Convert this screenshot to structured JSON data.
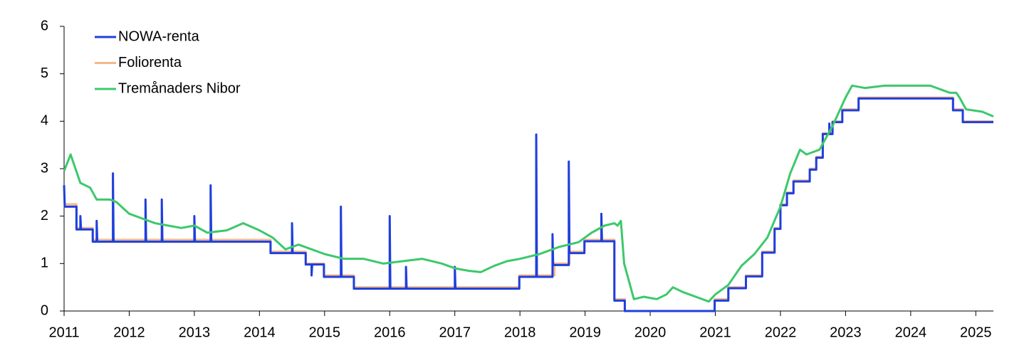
{
  "chart_data": {
    "type": "line",
    "xlim": [
      2011,
      2025.27
    ],
    "ylim": [
      0,
      6
    ],
    "xticks": [
      2011,
      2012,
      2013,
      2014,
      2015,
      2016,
      2017,
      2018,
      2019,
      2020,
      2021,
      2022,
      2023,
      2024,
      2025
    ],
    "yticks": [
      0,
      1,
      2,
      3,
      4,
      5,
      6
    ],
    "legend": "upper-left",
    "series": [
      {
        "name": "NOWA-renta",
        "color": "#1f3fdc",
        "x": [
          2011.0,
          2011.01,
          2011.19,
          2011.19,
          2011.25,
          2011.25,
          2011.26,
          2011.44,
          2011.44,
          2011.5,
          2011.5,
          2011.51,
          2011.75,
          2011.75,
          2011.76,
          2012.25,
          2012.25,
          2012.26,
          2012.5,
          2012.5,
          2012.51,
          2013.0,
          2013.0,
          2013.01,
          2013.25,
          2013.25,
          2013.26,
          2014.17,
          2014.17,
          2014.5,
          2014.5,
          2014.51,
          2014.71,
          2014.71,
          2014.8,
          2014.8,
          2014.81,
          2014.99,
          2014.99,
          2015.25,
          2015.25,
          2015.26,
          2015.45,
          2015.45,
          2016.0,
          2016.0,
          2016.01,
          2016.25,
          2016.25,
          2016.26,
          2017.0,
          2017.0,
          2017.01,
          2017.99,
          2017.99,
          2018.25,
          2018.25,
          2018.26,
          2018.5,
          2018.5,
          2018.51,
          2018.75,
          2018.75,
          2018.76,
          2018.99,
          2018.99,
          2019.25,
          2019.25,
          2019.26,
          2019.45,
          2019.45,
          2019.61,
          2019.61,
          2020.99,
          2020.99,
          2021.2,
          2021.2,
          2021.47,
          2021.47,
          2021.72,
          2021.72,
          2021.91,
          2021.91,
          2022.0,
          2022.0,
          2022.1,
          2022.1,
          2022.2,
          2022.2,
          2022.45,
          2022.45,
          2022.55,
          2022.55,
          2022.65,
          2022.65,
          2022.75,
          2022.75,
          2022.76,
          2022.8,
          2022.8,
          2022.95,
          2022.95,
          2023.2,
          2023.2,
          2024.65,
          2024.65,
          2024.8,
          2024.8,
          2025.27
        ],
        "values": [
          2.65,
          2.2,
          2.2,
          1.72,
          1.72,
          2.0,
          1.72,
          1.72,
          1.46,
          1.46,
          1.9,
          1.46,
          1.46,
          2.9,
          1.46,
          1.46,
          2.35,
          1.46,
          1.46,
          2.35,
          1.46,
          1.46,
          2.0,
          1.46,
          1.46,
          2.65,
          1.46,
          1.46,
          1.22,
          1.22,
          1.85,
          1.22,
          1.22,
          0.98,
          0.98,
          0.75,
          0.98,
          0.98,
          0.72,
          0.72,
          2.2,
          0.72,
          0.72,
          0.47,
          0.47,
          2.0,
          0.47,
          0.47,
          0.93,
          0.47,
          0.47,
          0.93,
          0.47,
          0.47,
          0.72,
          0.72,
          3.72,
          0.72,
          0.72,
          1.62,
          0.97,
          0.97,
          3.15,
          1.22,
          1.22,
          1.47,
          1.47,
          2.05,
          1.47,
          1.47,
          0.22,
          0.22,
          0.0,
          0.0,
          0.22,
          0.22,
          0.48,
          0.48,
          0.73,
          0.73,
          1.23,
          1.23,
          1.73,
          1.73,
          2.23,
          2.23,
          2.48,
          2.48,
          2.73,
          2.73,
          2.98,
          2.98,
          3.23,
          3.23,
          3.73,
          3.73,
          3.95,
          3.73,
          3.73,
          3.98,
          3.98,
          4.23,
          4.23,
          4.48,
          4.48,
          4.23,
          4.23,
          3.98,
          3.98
        ]
      },
      {
        "name": "Foliorenta",
        "color": "#f5b88a",
        "x": [
          2011.0,
          2011.19,
          2011.19,
          2011.44,
          2011.44,
          2014.17,
          2014.17,
          2014.71,
          2014.71,
          2014.99,
          2014.99,
          2015.45,
          2015.45,
          2017.99,
          2017.99,
          2018.53,
          2018.53,
          2018.76,
          2018.76,
          2018.99,
          2018.99,
          2019.45,
          2019.45,
          2019.61,
          2019.61,
          2020.99,
          2020.99,
          2021.2,
          2021.2,
          2021.47,
          2021.47,
          2021.72,
          2021.72,
          2021.91,
          2021.91,
          2022.0,
          2022.0,
          2022.1,
          2022.1,
          2022.2,
          2022.2,
          2022.45,
          2022.45,
          2022.55,
          2022.55,
          2022.65,
          2022.65,
          2022.8,
          2022.8,
          2022.95,
          2022.95,
          2023.2,
          2023.2,
          2024.65,
          2024.65,
          2024.8,
          2024.8,
          2025.27
        ],
        "values": [
          2.25,
          2.25,
          1.75,
          1.75,
          1.5,
          1.5,
          1.25,
          1.25,
          1.0,
          1.0,
          0.75,
          0.75,
          0.5,
          0.5,
          0.75,
          0.75,
          1.0,
          1.0,
          1.25,
          1.25,
          1.5,
          1.5,
          0.25,
          0.25,
          0,
          0,
          0.25,
          0.25,
          0.5,
          0.5,
          0.75,
          0.75,
          1.25,
          1.25,
          1.75,
          1.75,
          2.25,
          2.25,
          2.5,
          2.5,
          2.75,
          2.75,
          3.0,
          3.0,
          3.25,
          3.25,
          3.75,
          3.75,
          4.0,
          4.0,
          4.25,
          4.25,
          4.5,
          4.5,
          4.25,
          4.25,
          4.0,
          4.0
        ]
      },
      {
        "name": "Tremånaders Nibor",
        "color": "#3cc86b",
        "x": [
          2011.0,
          2011.1,
          2011.15,
          2011.25,
          2011.4,
          2011.5,
          2011.7,
          2011.8,
          2012.0,
          2012.2,
          2012.4,
          2012.6,
          2012.8,
          2013.0,
          2013.2,
          2013.5,
          2013.75,
          2014.0,
          2014.2,
          2014.4,
          2014.6,
          2014.8,
          2015.0,
          2015.3,
          2015.6,
          2015.9,
          2016.2,
          2016.5,
          2016.8,
          2017.0,
          2017.2,
          2017.4,
          2017.6,
          2017.8,
          2018.0,
          2018.3,
          2018.6,
          2018.9,
          2019.1,
          2019.3,
          2019.45,
          2019.5,
          2019.55,
          2019.6,
          2019.7,
          2019.75,
          2019.9,
          2020.1,
          2020.25,
          2020.35,
          2020.5,
          2020.7,
          2020.9,
          2021.0,
          2021.2,
          2021.4,
          2021.6,
          2021.8,
          2022.0,
          2022.15,
          2022.3,
          2022.4,
          2022.6,
          2022.8,
          2023.0,
          2023.1,
          2023.3,
          2023.6,
          2024.0,
          2024.3,
          2024.6,
          2024.7,
          2024.75,
          2024.85,
          2025.1,
          2025.27
        ],
        "values": [
          2.95,
          3.3,
          3.1,
          2.7,
          2.6,
          2.35,
          2.35,
          2.3,
          2.05,
          1.95,
          1.85,
          1.8,
          1.75,
          1.8,
          1.65,
          1.7,
          1.85,
          1.7,
          1.55,
          1.3,
          1.4,
          1.3,
          1.2,
          1.1,
          1.1,
          1.0,
          1.05,
          1.1,
          1.0,
          0.9,
          0.85,
          0.82,
          0.95,
          1.05,
          1.1,
          1.2,
          1.35,
          1.45,
          1.65,
          1.8,
          1.85,
          1.8,
          1.9,
          1.0,
          0.5,
          0.25,
          0.3,
          0.25,
          0.35,
          0.5,
          0.4,
          0.3,
          0.2,
          0.35,
          0.55,
          0.95,
          1.2,
          1.55,
          2.2,
          2.9,
          3.4,
          3.3,
          3.4,
          3.9,
          4.5,
          4.75,
          4.7,
          4.75,
          4.75,
          4.75,
          4.6,
          4.6,
          4.5,
          4.25,
          4.2,
          4.1
        ]
      }
    ]
  }
}
